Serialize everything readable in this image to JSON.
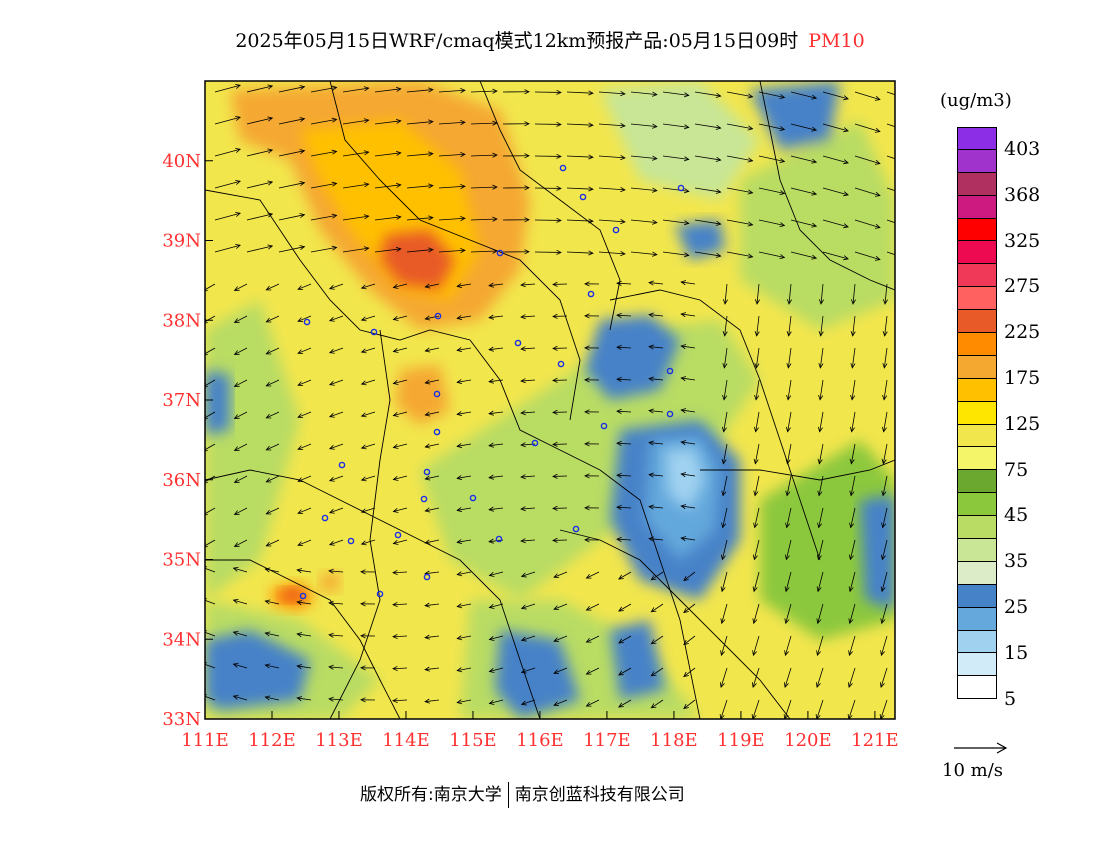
{
  "title": {
    "text": "2025年05月15日WRF/cmaq模式12km预报产品:05月15日09时",
    "variable": "PM10"
  },
  "map": {
    "lon_range": [
      111,
      121.3
    ],
    "lat_range": [
      33,
      41
    ],
    "x_ticks": [
      "111E",
      "112E",
      "113E",
      "114E",
      "115E",
      "116E",
      "117E",
      "118E",
      "119E",
      "120E",
      "121E"
    ],
    "y_ticks": [
      "33N",
      "34N",
      "35N",
      "36N",
      "37N",
      "38N",
      "39N",
      "40N"
    ],
    "city_count": 29
  },
  "legend": {
    "unit": "(ug/m3)",
    "colors": [
      "#8c2ee6",
      "#a033cc",
      "#b03060",
      "#cc1a80",
      "#ff0000",
      "#ee0a50",
      "#f03858",
      "#ff6060",
      "#e85a28",
      "#ff8c00",
      "#f5a830",
      "#ffc000",
      "#ffe600",
      "#f2e64d",
      "#f5f569",
      "#6aa830",
      "#8cc83c",
      "#b9dc64",
      "#c8e696",
      "#dcebc8",
      "#4682c8",
      "#64a8dc",
      "#a0d2f0",
      "#d2ebf9",
      "#ffffff"
    ],
    "labels": [
      "403",
      "368",
      "325",
      "275",
      "225",
      "175",
      "125",
      "75",
      "45",
      "35",
      "25",
      "15",
      "5"
    ]
  },
  "wind": {
    "reference_label": "10 m/s"
  },
  "footer": {
    "copyright": "版权所有:南京大学",
    "company": "南京创蓝科技有限公司"
  }
}
